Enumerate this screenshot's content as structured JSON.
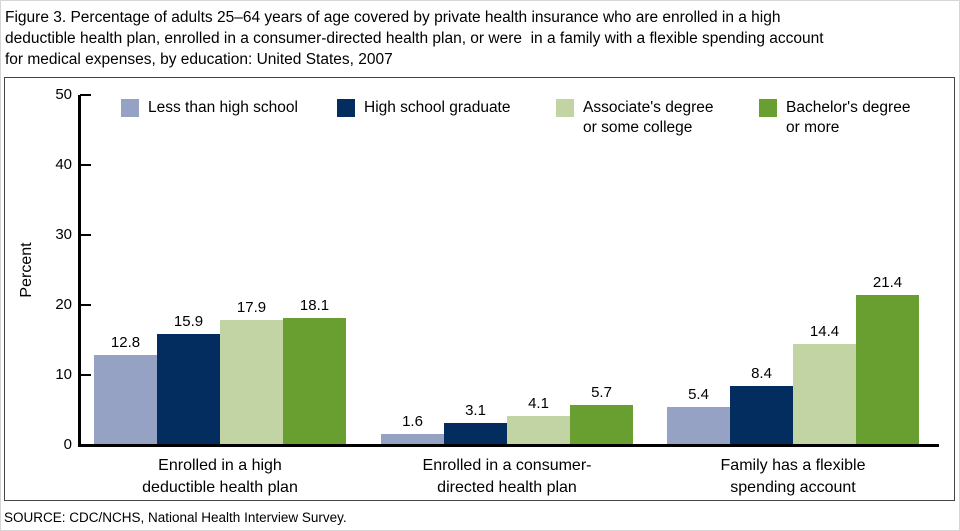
{
  "title": {
    "line1": "Figure 3. Percentage of adults 25–64 years of age covered by private health insurance who are enrolled in a high",
    "line2": "deductible health plan, enrolled in a consumer-directed health plan, or were  in a family with a flexible spending account",
    "line3": "for medical expenses, by education: United States, 2007"
  },
  "source_note": "SOURCE: CDC/NCHS, National Health Interview Survey.",
  "chart_data": {
    "type": "bar",
    "figure_label": "Figure 3.",
    "title": "Percentage of adults 25–64 years of age covered by private health insurance who are enrolled in a high deductible health plan, enrolled in a consumer-directed health plan, or were in a family with a flexible spending account for medical expenses, by education: United States, 2007",
    "ylabel": "Percent",
    "ylim": [
      0,
      50
    ],
    "yticks": [
      0,
      10,
      20,
      30,
      40,
      50
    ],
    "grid": false,
    "legend_position": "top-inside",
    "value_labels": true,
    "categories": [
      {
        "lines": [
          "Enrolled in a high",
          "deductible health plan"
        ]
      },
      {
        "lines": [
          "Enrolled in a consumer-",
          "directed health plan"
        ]
      },
      {
        "lines": [
          "Family has a flexible",
          "spending account"
        ]
      }
    ],
    "series": [
      {
        "name": "Less than high school",
        "color": "#95A2C4",
        "values": [
          12.8,
          1.6,
          5.4
        ]
      },
      {
        "name": "High school graduate",
        "color": "#032C5F",
        "values": [
          15.9,
          3.1,
          8.4
        ]
      },
      {
        "name": "Associate's degree or some college",
        "color": "#C3D4A4",
        "values": [
          17.9,
          4.1,
          14.4
        ]
      },
      {
        "name": "Bachelor's degree or more",
        "color": "#699F30",
        "values": [
          18.1,
          5.7,
          21.4
        ]
      }
    ]
  },
  "legend": {
    "items": [
      {
        "lines": [
          "Less than high school"
        ],
        "color": "#95A2C4"
      },
      {
        "lines": [
          "High school graduate"
        ],
        "color": "#032C5F"
      },
      {
        "lines": [
          "Associate's degree",
          "or some college"
        ],
        "color": "#C3D4A4"
      },
      {
        "lines": [
          "Bachelor's degree",
          "or more"
        ],
        "color": "#699F30"
      }
    ]
  }
}
